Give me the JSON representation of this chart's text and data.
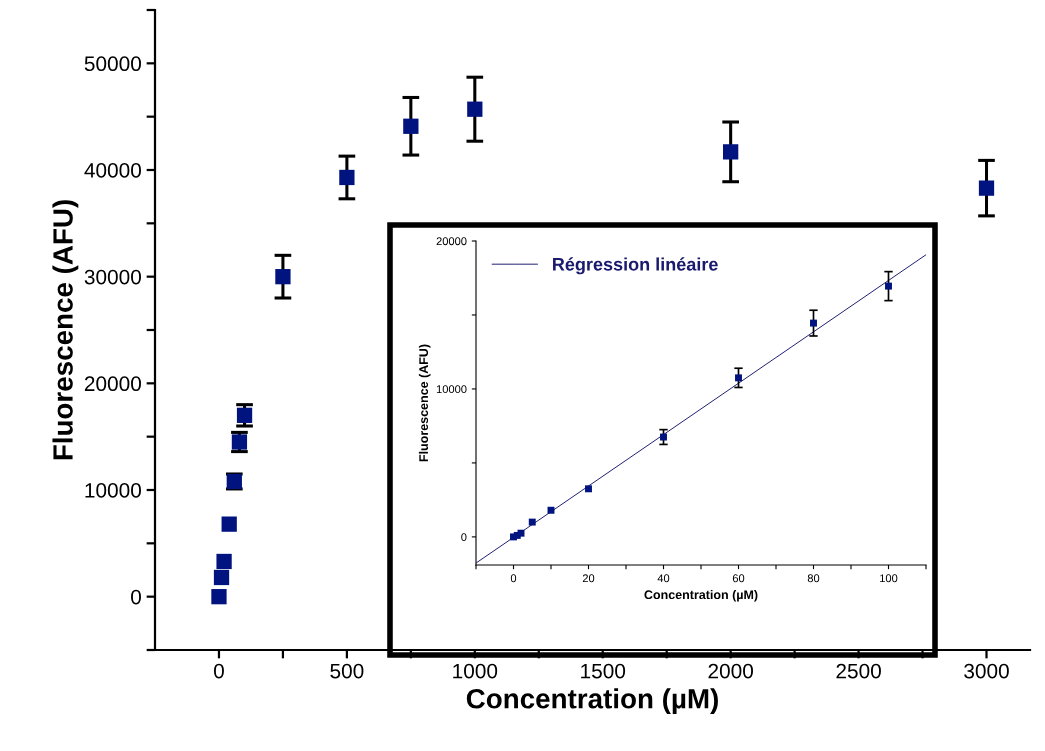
{
  "chart_data": [
    {
      "type": "scatter",
      "xlabel": "Concentration (µM)",
      "ylabel": "Fluorescence (AFU)",
      "grid": false,
      "legend": false,
      "xlim": [
        -250,
        3170
      ],
      "ylim": [
        -5000,
        55000
      ],
      "xticks": [
        0,
        {
          "value": 250,
          "label": null
        },
        500,
        {
          "value": 750,
          "label": null
        },
        1000,
        {
          "value": 1250,
          "label": null
        },
        1500,
        {
          "value": 1750,
          "label": null
        },
        2000,
        {
          "value": 2250,
          "label": null
        },
        2500,
        {
          "value": 2750,
          "label": null
        },
        3000
      ],
      "yticks": [
        {
          "value": -5000,
          "label": null
        },
        0,
        {
          "value": 5000,
          "label": null
        },
        10000,
        {
          "value": 15000,
          "label": null
        },
        20000,
        {
          "value": 25000,
          "label": null
        },
        30000,
        {
          "value": 35000,
          "label": null
        },
        40000,
        {
          "value": 45000,
          "label": null
        },
        50000,
        {
          "value": 55000,
          "label": null
        }
      ],
      "series": [
        {
          "marker": "square",
          "color": "#00137f",
          "x": [
            0,
            1,
            2,
            5,
            10,
            20,
            40,
            60,
            80,
            100,
            250,
            500,
            750,
            1000,
            2000,
            3000
          ],
          "values": [
            0,
            null,
            null,
            null,
            1800,
            3300,
            6800,
            10800,
            14500,
            17000,
            30000,
            39300,
            44100,
            45700,
            41700,
            38300
          ],
          "errors": [
            null,
            null,
            null,
            null,
            null,
            null,
            null,
            700,
            900,
            1000,
            2000,
            2000,
            2700,
            3000,
            2800,
            2600
          ]
        }
      ]
    },
    {
      "type": "scatter",
      "xlabel": "Concentration (µM)",
      "ylabel": "Fluorescence (AFU)",
      "grid": false,
      "legend": "top left",
      "xlim": [
        -10,
        110
      ],
      "ylim": [
        -1900,
        20000
      ],
      "xticks": [
        {
          "value": -10,
          "label": null
        },
        0,
        {
          "value": 10,
          "label": null
        },
        20,
        {
          "value": 30,
          "label": null
        },
        40,
        {
          "value": 50,
          "label": null
        },
        60,
        {
          "value": 70,
          "label": null
        },
        80,
        {
          "value": 90,
          "label": null
        },
        100,
        {
          "value": 110,
          "label": null
        }
      ],
      "yticks": [
        0,
        {
          "value": 5000,
          "label": null
        },
        10000,
        {
          "value": 15000,
          "label": null
        },
        20000
      ],
      "series": [
        {
          "type": "line",
          "name": "Régression linéaire",
          "color": "#1a1a6e",
          "x": [
            -10,
            110
          ],
          "values": [
            -1770,
            19070
          ]
        },
        {
          "marker": "square",
          "color": "#00137f",
          "x": [
            0,
            1,
            2,
            5,
            10,
            20,
            40,
            60,
            80,
            100
          ],
          "values": [
            0,
            100,
            250,
            1000,
            1800,
            3250,
            6750,
            10750,
            14450,
            16950
          ],
          "errors": [
            null,
            null,
            null,
            null,
            null,
            null,
            500,
            650,
            870,
            980
          ]
        }
      ]
    }
  ]
}
